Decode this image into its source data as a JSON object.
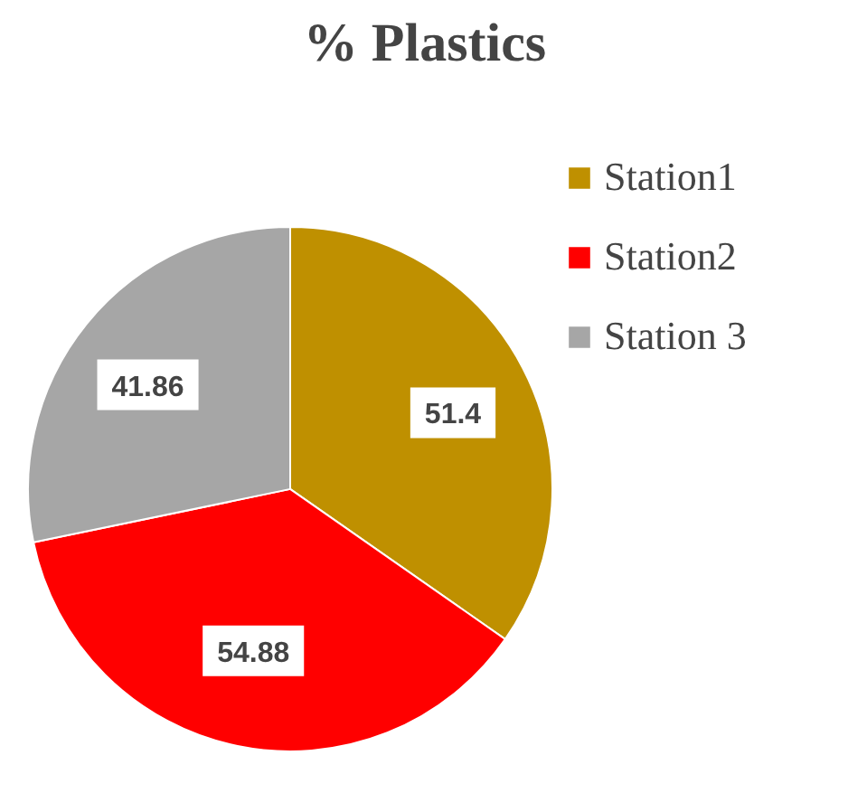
{
  "chart_data": {
    "type": "pie",
    "title": "% Plastics",
    "categories": [
      "Station1",
      "Station2",
      "Station 3"
    ],
    "values": [
      51.4,
      54.88,
      41.86
    ],
    "colors": [
      "#bf9000",
      "#ff0000",
      "#a6a6a6"
    ],
    "data_labels": true,
    "legend": "right"
  }
}
